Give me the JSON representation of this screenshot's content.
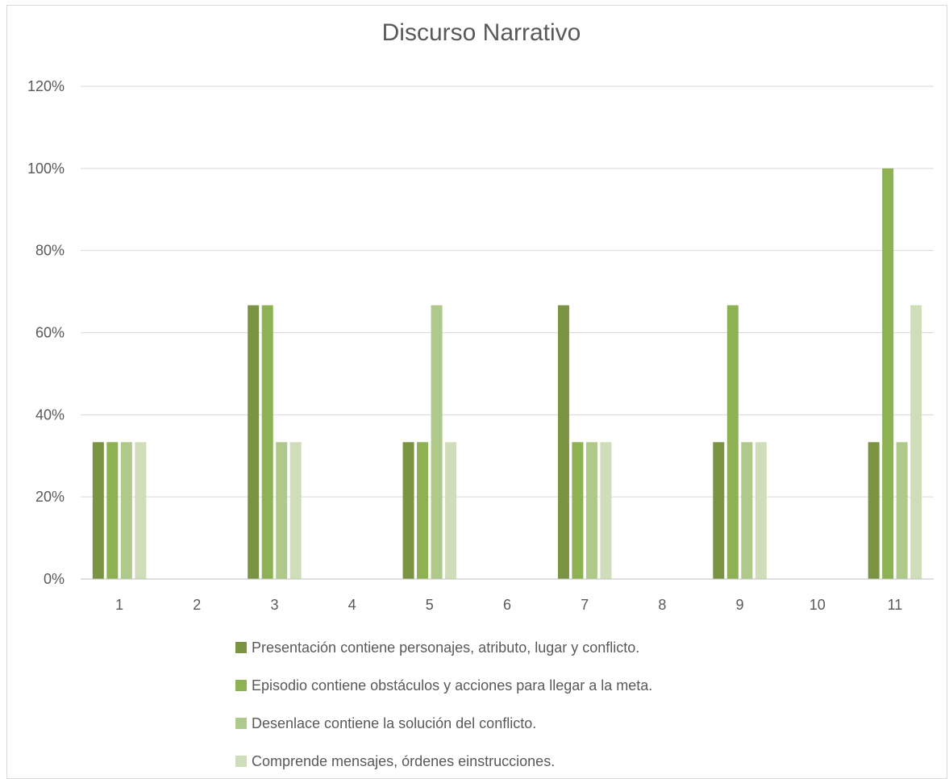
{
  "chart_data": {
    "type": "bar",
    "title": "Discurso Narrativo",
    "xlabel": "",
    "ylabel": "",
    "categories": [
      "1",
      "2",
      "3",
      "4",
      "5",
      "6",
      "7",
      "8",
      "9",
      "10",
      "11"
    ],
    "ylim": [
      0,
      1.2
    ],
    "y_ticks": [
      "0%",
      "20%",
      "40%",
      "60%",
      "80%",
      "100%",
      "120%"
    ],
    "y_tick_values": [
      0,
      0.2,
      0.4,
      0.6,
      0.8,
      1.0,
      1.2
    ],
    "grid": true,
    "legend_position": "bottom",
    "series": [
      {
        "name": "Presentación contiene personajes, atributo, lugar y conflicto.",
        "color": "#7a9444",
        "values": [
          0.3333,
          0,
          0.6667,
          0,
          0.3333,
          0,
          0.6667,
          0,
          0.3333,
          0,
          0.3333
        ]
      },
      {
        "name": "Episodio contiene obstáculos y acciones para llegar a la meta.",
        "color": "#8db153",
        "values": [
          0.3333,
          0,
          0.6667,
          0,
          0.3333,
          0,
          0.3333,
          0,
          0.6667,
          0,
          1.0
        ]
      },
      {
        "name": "Desenlace contiene la solución del conflicto.",
        "color": "#aec98a",
        "values": [
          0.3333,
          0,
          0.3333,
          0,
          0.6667,
          0,
          0.3333,
          0,
          0.3333,
          0,
          0.3333
        ]
      },
      {
        "name": "Comprende mensajes, órdenes einstrucciones.",
        "color": "#cfdeb9",
        "values": [
          0.3333,
          0,
          0.3333,
          0,
          0.3333,
          0,
          0.3333,
          0,
          0.3333,
          0,
          0.6667
        ]
      }
    ]
  }
}
